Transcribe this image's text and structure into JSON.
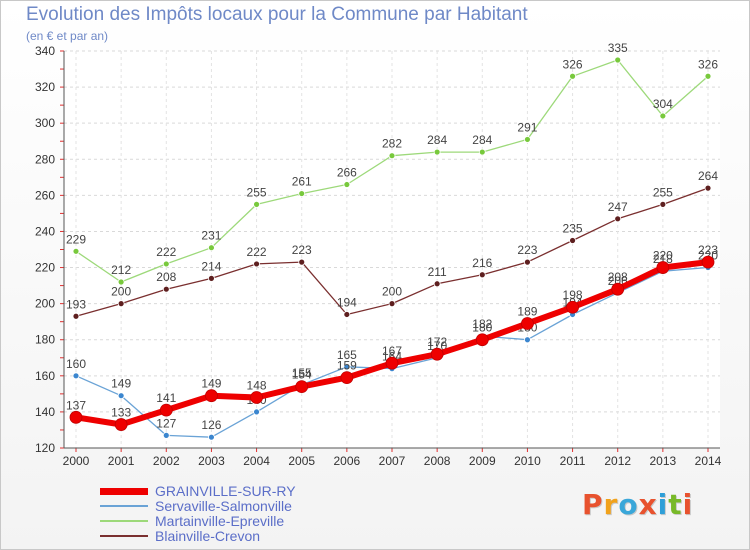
{
  "title": "Evolution des Impôts locaux pour la Commune par Habitant",
  "subtitle": "(en € et par an)",
  "logo": {
    "text": "Proxiti",
    "colors": [
      "#e8522e",
      "#f1a21b",
      "#3aa7d9",
      "#e8522e",
      "#2e9fd8",
      "#78b928",
      "#e8522e"
    ]
  },
  "chart_data": {
    "type": "line",
    "x": [
      2000,
      2001,
      2002,
      2003,
      2004,
      2005,
      2006,
      2007,
      2008,
      2009,
      2010,
      2011,
      2012,
      2013,
      2014
    ],
    "ylim": [
      120,
      340
    ],
    "yticks": [
      120,
      140,
      160,
      180,
      200,
      220,
      240,
      260,
      280,
      300,
      320,
      340
    ],
    "grid": true,
    "legend_position": "bottom",
    "series": [
      {
        "name": "Martainville-Epreville",
        "color": "#9dd97a",
        "marker": "#78c93c",
        "width": 1.3,
        "values": [
          229,
          212,
          222,
          231,
          255,
          261,
          266,
          282,
          284,
          284,
          291,
          326,
          335,
          304,
          326
        ],
        "labels": [
          "229",
          "212",
          "222",
          "231",
          "255",
          "261",
          "266",
          "282",
          "284",
          "284",
          "291",
          "326",
          "335",
          "304",
          "326"
        ]
      },
      {
        "name": "Blainville-Crevon",
        "color": "#7a2f2f",
        "marker": "#5e1f1f",
        "width": 1.3,
        "values": [
          193,
          200,
          208,
          214,
          222,
          223,
          194,
          200,
          211,
          216,
          223,
          235,
          247,
          255,
          264
        ],
        "labels": [
          "193",
          "200",
          "208",
          "214",
          "222",
          "223",
          "194",
          "200",
          "211",
          "216",
          "223",
          "235",
          "247",
          "255",
          "264"
        ]
      },
      {
        "name": "Servaville-Salmonville",
        "color": "#6aa3d6",
        "marker": "#3b86cf",
        "width": 1.3,
        "values": [
          160,
          149,
          127,
          126,
          140,
          155,
          165,
          164,
          170,
          182,
          180,
          194,
          206,
          218,
          220
        ],
        "labels": [
          "160",
          "149",
          "127",
          "126",
          "140",
          "155",
          "165",
          "164",
          "170",
          "182",
          "180",
          "194",
          "206",
          "218",
          "220"
        ]
      },
      {
        "name": "GRAINVILLE-SUR-RY",
        "color": "#ee0000",
        "marker": "#ee0000",
        "width": 6,
        "values": [
          137,
          133,
          141,
          149,
          148,
          154,
          159,
          167,
          172,
          180,
          189,
          198,
          208,
          220,
          223
        ],
        "labels": [
          "137",
          "133",
          "141",
          "149",
          "148",
          "154",
          "159",
          "167",
          "172",
          "180",
          "189",
          "198",
          "208",
          "220",
          "223"
        ]
      }
    ],
    "legend_order": [
      "GRAINVILLE-SUR-RY",
      "Servaville-Salmonville",
      "Martainville-Epreville",
      "Blainville-Crevon"
    ]
  }
}
